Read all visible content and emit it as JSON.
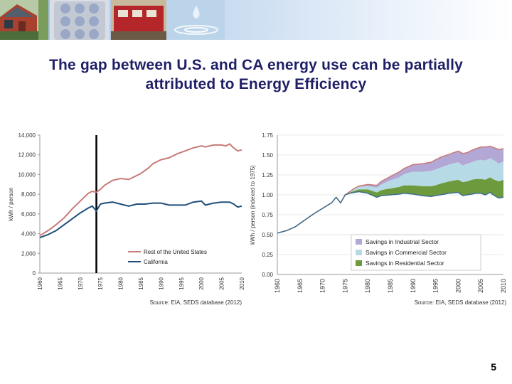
{
  "slide": {
    "title_line1": "The gap between U.S. and CA energy use can be partially",
    "title_line2": "attributed to Energy Efficiency",
    "page_number": "5"
  },
  "banner": {
    "images": [
      "house-photo",
      "calculator-photo",
      "train-photo",
      "water-drop-photo"
    ]
  },
  "chart_data": [
    {
      "type": "line",
      "ylabel": "kWh / person",
      "ylim": [
        0,
        14000
      ],
      "yticks": [
        0,
        2000,
        4000,
        6000,
        8000,
        10000,
        12000,
        14000
      ],
      "ytick_labels": [
        "0",
        "2,000",
        "4,000",
        "6,000",
        "8,000",
        "10,000",
        "12,000",
        "14,000"
      ],
      "xlim": [
        1960,
        2010
      ],
      "xtick_labels": [
        "1960",
        "1965",
        "1970",
        "1975",
        "1980",
        "1985",
        "1990",
        "1995",
        "2000",
        "2005",
        "2010"
      ],
      "vertical_marker_year": 1974,
      "source": "Source: EIA, SEDS database (2012)",
      "legend_position": "bottom-center",
      "series": [
        {
          "name": "Rest of the United States",
          "color": "#c87a76",
          "x": [
            1960,
            1962,
            1964,
            1966,
            1968,
            1970,
            1972,
            1973,
            1974,
            1975,
            1976,
            1978,
            1980,
            1982,
            1983,
            1985,
            1987,
            1988,
            1990,
            1992,
            1994,
            1996,
            1998,
            2000,
            2001,
            2003,
            2005,
            2006,
            2007,
            2008,
            2009,
            2010
          ],
          "y": [
            3800,
            4300,
            4900,
            5600,
            6500,
            7300,
            8100,
            8300,
            8200,
            8500,
            8900,
            9400,
            9600,
            9500,
            9700,
            10100,
            10700,
            11100,
            11500,
            11700,
            12100,
            12400,
            12700,
            12900,
            12800,
            13000,
            13000,
            12900,
            13100,
            12700,
            12400,
            12500
          ]
        },
        {
          "name": "California",
          "color": "#1f4e79",
          "x": [
            1960,
            1962,
            1964,
            1966,
            1968,
            1970,
            1972,
            1973,
            1974,
            1975,
            1976,
            1978,
            1980,
            1982,
            1984,
            1986,
            1988,
            1990,
            1992,
            1994,
            1996,
            1998,
            2000,
            2001,
            2003,
            2005,
            2007,
            2008,
            2009,
            2010
          ],
          "y": [
            3600,
            3900,
            4300,
            4900,
            5500,
            6100,
            6600,
            6800,
            6300,
            7000,
            7100,
            7200,
            7000,
            6800,
            7000,
            7000,
            7100,
            7100,
            6900,
            6900,
            6900,
            7200,
            7300,
            6900,
            7100,
            7200,
            7200,
            7000,
            6700,
            6800
          ]
        }
      ]
    },
    {
      "type": "area",
      "ylabel": "kWh / person (indexed to 1975)",
      "ylim": [
        0,
        1.75
      ],
      "yticks": [
        0,
        0.25,
        0.5,
        0.75,
        1.0,
        1.25,
        1.5,
        1.75
      ],
      "ytick_labels": [
        "0.00",
        "0.25",
        "0.50",
        "0.75",
        "1.00",
        "1.25",
        "1.50",
        "1.75"
      ],
      "xlim": [
        1960,
        2010
      ],
      "xtick_labels": [
        "1960",
        "1965",
        "1970",
        "1975",
        "1980",
        "1985",
        "1990",
        "1995",
        "2000",
        "2005",
        "2010"
      ],
      "source": "Source: EIA, SEDS database (2012)",
      "legend_position": "bottom-right",
      "x": [
        1960,
        1962,
        1964,
        1966,
        1968,
        1970,
        1972,
        1973,
        1974,
        1975,
        1976,
        1977,
        1978,
        1980,
        1982,
        1983,
        1985,
        1987,
        1988,
        1990,
        1992,
        1994,
        1995,
        1996,
        1998,
        2000,
        2001,
        2002,
        2003,
        2004,
        2005,
        2006,
        2007,
        2008,
        2009,
        2010
      ],
      "baseline": [
        0.52,
        0.55,
        0.6,
        0.68,
        0.76,
        0.83,
        0.9,
        0.97,
        0.9,
        1.0,
        1.02,
        1.03,
        1.04,
        1.02,
        0.97,
        0.99,
        1.0,
        1.01,
        1.02,
        1.01,
        0.99,
        0.98,
        0.99,
        1.0,
        1.02,
        1.03,
        0.99,
        1.0,
        1.01,
        1.02,
        1.02,
        1.0,
        1.03,
        0.99,
        0.96,
        0.97
      ],
      "series": [
        {
          "name": "Savings in Residential Sector",
          "color": "#6e9a3e",
          "values": [
            0,
            0,
            0,
            0,
            0,
            0,
            0,
            0,
            0,
            0,
            0.01,
            0.02,
            0.03,
            0.05,
            0.06,
            0.07,
            0.08,
            0.09,
            0.1,
            0.11,
            0.12,
            0.13,
            0.13,
            0.14,
            0.15,
            0.16,
            0.17,
            0.17,
            0.18,
            0.18,
            0.18,
            0.19,
            0.19,
            0.2,
            0.21,
            0.22
          ]
        },
        {
          "name": "Savings in Commercial Sector",
          "color": "#b7dbe6",
          "values": [
            0,
            0,
            0,
            0,
            0,
            0,
            0,
            0,
            0,
            0,
            0.01,
            0.02,
            0.03,
            0.04,
            0.06,
            0.07,
            0.1,
            0.12,
            0.14,
            0.17,
            0.18,
            0.19,
            0.2,
            0.2,
            0.21,
            0.22,
            0.21,
            0.22,
            0.22,
            0.23,
            0.24,
            0.24,
            0.24,
            0.24,
            0.22,
            0.23
          ]
        },
        {
          "name": "Savings in Industrial Sector",
          "color": "#b3a7d6",
          "values": [
            0,
            0,
            0,
            0,
            0,
            0,
            0,
            0,
            0,
            0,
            0,
            0.01,
            0.01,
            0.02,
            0.03,
            0.04,
            0.05,
            0.07,
            0.07,
            0.09,
            0.1,
            0.11,
            0.12,
            0.13,
            0.13,
            0.14,
            0.15,
            0.14,
            0.15,
            0.15,
            0.16,
            0.17,
            0.15,
            0.16,
            0.18,
            0.16
          ]
        }
      ],
      "legend_order": [
        "Savings in Industrial Sector",
        "Savings in Commercial Sector",
        "Savings in Residential Sector"
      ]
    }
  ]
}
